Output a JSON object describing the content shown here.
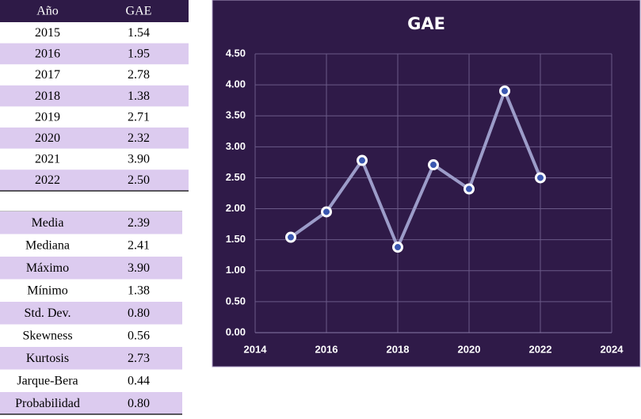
{
  "table": {
    "header": [
      "Año",
      "GAE"
    ],
    "rows": [
      [
        "2015",
        "1.54"
      ],
      [
        "2016",
        "1.95"
      ],
      [
        "2017",
        "2.78"
      ],
      [
        "2018",
        "1.38"
      ],
      [
        "2019",
        "2.71"
      ],
      [
        "2020",
        "2.32"
      ],
      [
        "2021",
        "3.90"
      ],
      [
        "2022",
        "2.50"
      ]
    ]
  },
  "stats": {
    "rows": [
      [
        "Media",
        "2.39"
      ],
      [
        "Mediana",
        "2.41"
      ],
      [
        "Máximo",
        "3.90"
      ],
      [
        "Mínimo",
        "1.38"
      ],
      [
        "Std. Dev.",
        "0.80"
      ],
      [
        "Skewness",
        "0.56"
      ],
      [
        "Kurtosis",
        "2.73"
      ],
      [
        "Jarque-Bera",
        "0.44"
      ],
      [
        "Probabilidad",
        "0.80"
      ]
    ]
  },
  "chart_data": {
    "type": "line",
    "title": "GAE",
    "x": [
      2015,
      2016,
      2017,
      2018,
      2019,
      2020,
      2021,
      2022
    ],
    "series": [
      {
        "name": "GAE",
        "color": "#9c9cc9",
        "values": [
          1.54,
          1.95,
          2.78,
          1.38,
          2.71,
          2.32,
          3.9,
          2.5
        ]
      }
    ],
    "xlim": [
      2014,
      2024
    ],
    "xticks": [
      2014,
      2016,
      2018,
      2020,
      2022,
      2024
    ],
    "ylim": [
      0,
      4.5
    ],
    "yticks": [
      {
        "value": 0,
        "label": "0.00"
      },
      {
        "value": 0.5,
        "label": "0.50"
      },
      {
        "value": 1,
        "label": "1.00"
      },
      {
        "value": 1.5,
        "label": "1.50"
      },
      {
        "value": 2,
        "label": "2.00"
      },
      {
        "value": 2.5,
        "label": "2.50"
      },
      {
        "value": 3,
        "label": "3.00"
      },
      {
        "value": 3.5,
        "label": "3.50"
      },
      {
        "value": 4,
        "label": "4.00"
      },
      {
        "value": 4.5,
        "label": "4.50"
      }
    ],
    "grid": true
  }
}
